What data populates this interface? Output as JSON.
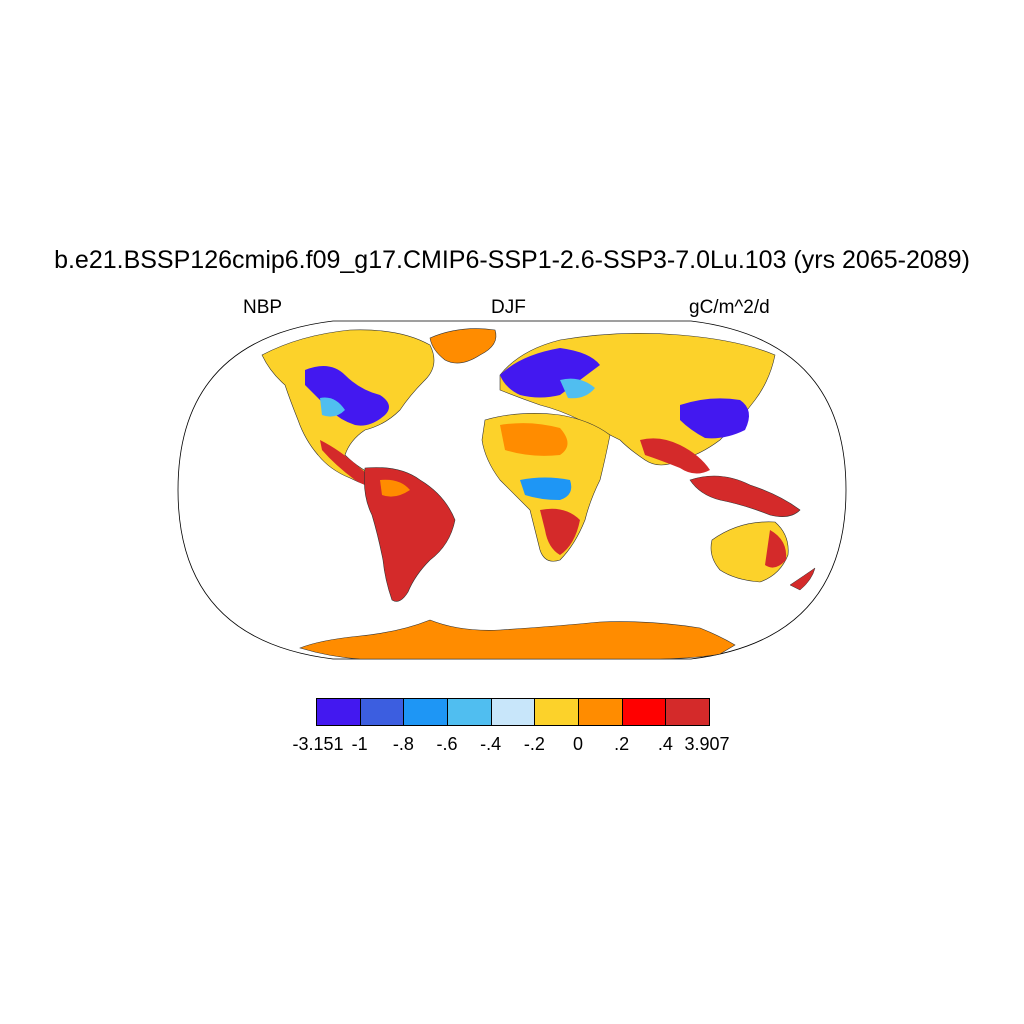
{
  "title": "b.e21.BSSP126cmip6.f09_g17.CMIP6-SSP1-2.6-SSP3-7.0Lu.103 (yrs 2065-2089)",
  "left_label": "NBP",
  "center_label": "DJF",
  "right_label": "gC/m^2/d",
  "colorbar": {
    "colors": [
      "#4318f0",
      "#3c5ee0",
      "#1e96f5",
      "#50bef0",
      "#c8e6fa",
      "#fcd22a",
      "#ff8c00",
      "#ff0000",
      "#d42a2a"
    ],
    "labels": [
      "-3.151",
      "-1",
      "-.8",
      "-.6",
      "-.4",
      "-.2",
      "0",
      ".2",
      ".4",
      "3.907"
    ]
  },
  "map": {
    "projection": "robinson",
    "land_colors": {
      "negative_strong": "#4318f0",
      "negative_medium": "#1e96f5",
      "negative_light": "#c8e6fa",
      "near_zero": "#fcd22a",
      "positive_small": "#ff8c00",
      "positive_large": "#d42a2a"
    }
  }
}
